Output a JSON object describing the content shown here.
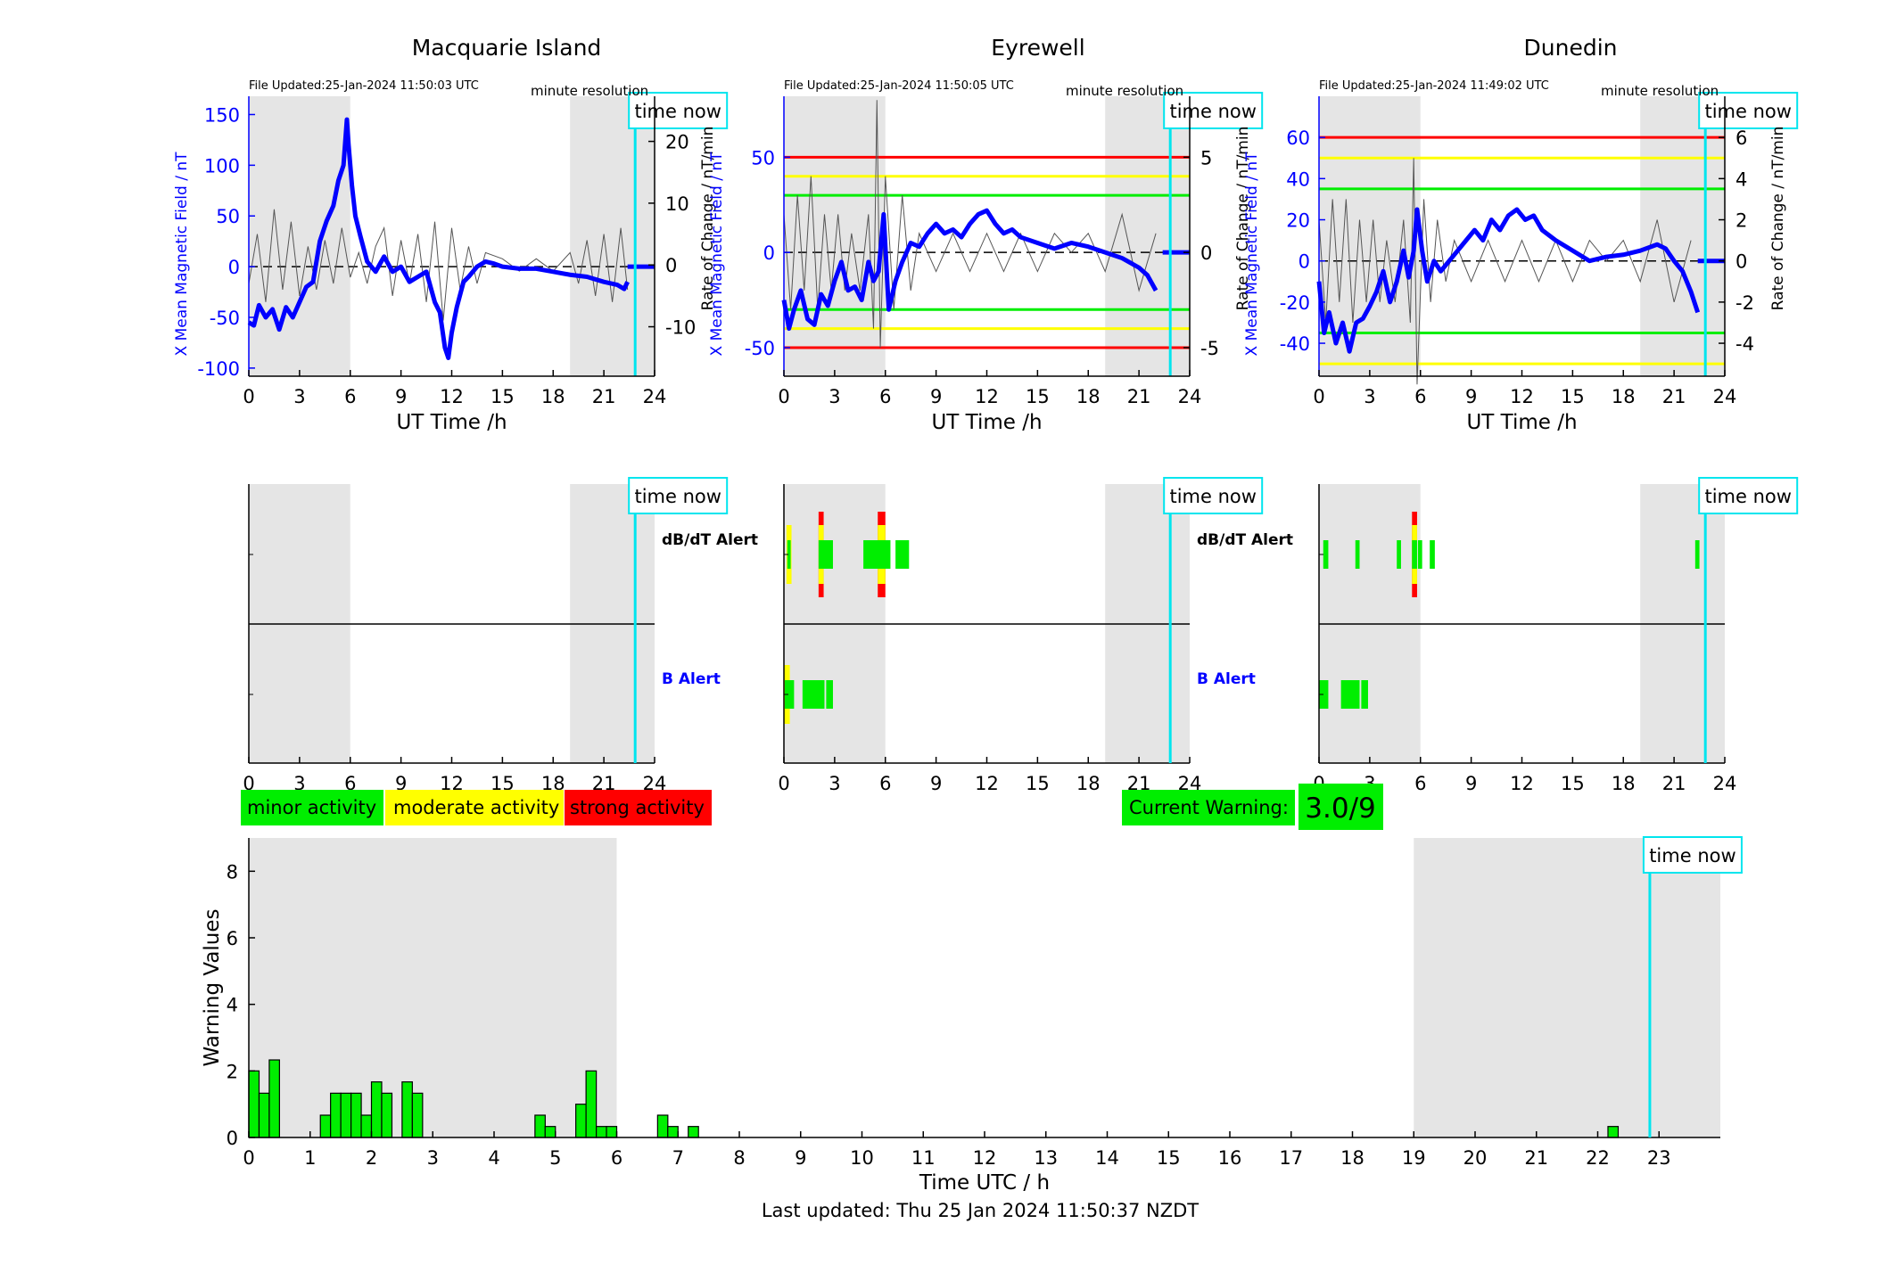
{
  "page": {
    "footer": "Last updated: Thu 25 Jan 2024 11:50:37 NZDT"
  },
  "colors": {
    "field": "#0000ff",
    "rate": "#555555",
    "night": "#e5e5e5",
    "now": "#00e5ee",
    "minor": "#00ee00",
    "moderate": "#ffff00",
    "strong": "#ff0000"
  },
  "common": {
    "x_label": "UT Time /h",
    "resolution": "minute resolution",
    "time_now": "time now",
    "x_ticks": [
      0,
      3,
      6,
      9,
      12,
      15,
      18,
      21,
      24
    ],
    "night_shading": [
      [
        0,
        6
      ],
      [
        19,
        24
      ]
    ],
    "now_hour": 22.85,
    "y_label": "X Mean Magnetic Field / nT",
    "y2_label": "Rate of Change / nT/min",
    "dbdt_label": "dB/dT Alert",
    "b_label": "B Alert"
  },
  "chart_data": [
    {
      "type": "line",
      "title": "Macquarie Island",
      "updated": "File Updated:25-Jan-2024 11:50:03 UTC",
      "ylim": [
        -108,
        168
      ],
      "y_ticks": [
        -100,
        -50,
        0,
        50,
        100,
        150
      ],
      "y2lim": [
        -18,
        27.3
      ],
      "y2_ticks": [
        -10,
        0,
        10,
        20
      ],
      "thresholds": [],
      "field_series": {
        "name": "X Mean Magnetic Field / nT",
        "x": [
          0,
          0.3,
          0.6,
          1,
          1.4,
          1.8,
          2.2,
          2.6,
          3,
          3.4,
          3.8,
          4.2,
          4.6,
          5,
          5.3,
          5.6,
          5.8,
          5.9,
          6.1,
          6.3,
          6.6,
          7,
          7.5,
          8,
          8.5,
          9,
          9.5,
          10,
          10.5,
          11,
          11.3,
          11.6,
          11.8,
          12,
          12.3,
          12.7,
          13,
          13.5,
          14,
          14.5,
          15,
          16,
          17,
          18,
          19,
          20,
          21,
          21.8,
          22.2,
          22.4
        ],
        "y": [
          -55,
          -58,
          -38,
          -50,
          -42,
          -62,
          -40,
          -50,
          -35,
          -20,
          -15,
          25,
          45,
          60,
          85,
          100,
          145,
          120,
          80,
          50,
          30,
          5,
          -5,
          10,
          -5,
          0,
          -15,
          -10,
          -5,
          -35,
          -45,
          -80,
          -90,
          -65,
          -40,
          -15,
          -10,
          0,
          5,
          3,
          0,
          -2,
          -2,
          -5,
          -8,
          -10,
          -15,
          -18,
          -22,
          -15
        ]
      },
      "rate_series": {
        "name": "Rate of Change / nT/min",
        "x": [
          0,
          0.5,
          1,
          1.5,
          2,
          2.5,
          3,
          3.5,
          4,
          4.5,
          5,
          5.5,
          6,
          6.5,
          7,
          7.5,
          8,
          8.5,
          9,
          9.5,
          10,
          10.5,
          11,
          11.5,
          12,
          12.5,
          13,
          13.5,
          14,
          15,
          16,
          17,
          18,
          19,
          19.5,
          20,
          20.5,
          21,
          21.5,
          22,
          22.4
        ],
        "y": [
          -3,
          5,
          -6,
          9,
          -4,
          7,
          -5,
          3,
          -4,
          4,
          -3,
          6,
          -2,
          2,
          -3,
          3,
          6,
          -5,
          4,
          -3,
          5,
          -6,
          7,
          -9,
          6,
          -4,
          3,
          -3,
          2,
          1,
          -1,
          1,
          -1,
          2,
          -3,
          4,
          -5,
          5,
          -6,
          6,
          -4
        ]
      },
      "dbdt_alerts": [],
      "b_alerts": []
    },
    {
      "type": "line",
      "title": "Eyrewell",
      "updated": "File Updated:25-Jan-2024 11:50:05 UTC",
      "ylim": [
        -65,
        82
      ],
      "y_ticks": [
        -50,
        0,
        50
      ],
      "y2lim": [
        -6.5,
        8.2
      ],
      "y2_ticks": [
        -5,
        0,
        5
      ],
      "thresholds": [
        {
          "value": 50,
          "level": "strong"
        },
        {
          "value": 40,
          "level": "moderate"
        },
        {
          "value": 30,
          "level": "minor"
        },
        {
          "value": -30,
          "level": "minor"
        },
        {
          "value": -40,
          "level": "moderate"
        },
        {
          "value": -50,
          "level": "strong"
        }
      ],
      "field_series": {
        "name": "X Mean Magnetic Field / nT",
        "x": [
          0,
          0.3,
          0.6,
          1,
          1.4,
          1.8,
          2.2,
          2.6,
          3,
          3.4,
          3.8,
          4.2,
          4.6,
          5,
          5.3,
          5.6,
          5.9,
          6.2,
          6.6,
          7,
          7.5,
          8,
          8.5,
          9,
          9.5,
          10,
          10.5,
          11,
          11.5,
          12,
          12.5,
          13,
          13.5,
          14,
          15,
          16,
          17,
          18,
          19,
          20,
          21,
          21.5,
          22
        ],
        "y": [
          -25,
          -40,
          -30,
          -20,
          -35,
          -38,
          -22,
          -28,
          -15,
          -5,
          -20,
          -18,
          -25,
          -5,
          -15,
          -10,
          20,
          -30,
          -15,
          -5,
          5,
          3,
          10,
          15,
          10,
          12,
          8,
          15,
          20,
          22,
          15,
          10,
          12,
          8,
          5,
          2,
          5,
          3,
          0,
          -3,
          -8,
          -12,
          -20
        ]
      },
      "rate_series": {
        "name": "Rate of Change / nT/min",
        "x": [
          0,
          0.4,
          0.8,
          1.2,
          1.6,
          2,
          2.4,
          2.8,
          3.2,
          3.6,
          4,
          4.5,
          5,
          5.3,
          5.5,
          5.7,
          6,
          6.5,
          7,
          7.5,
          8,
          9,
          10,
          11,
          12,
          13,
          14,
          15,
          16,
          17,
          18,
          19,
          20,
          21,
          22
        ],
        "y": [
          2,
          -3,
          3,
          -2,
          4,
          -3,
          2,
          -2,
          2,
          -2,
          1,
          -2,
          2,
          -4,
          8,
          -5,
          4,
          -3,
          3,
          -2,
          1,
          -1,
          1,
          -1,
          1,
          -1,
          1,
          -1,
          1,
          0,
          1,
          -1,
          2,
          -2,
          1
        ]
      },
      "dbdt_alerts": [
        {
          "start": 0.15,
          "end": 0.45,
          "level": "moderate"
        },
        {
          "start": 0.2,
          "end": 0.4,
          "level": "minor"
        },
        {
          "start": 2.05,
          "end": 2.35,
          "level": "strong"
        },
        {
          "start": 2.05,
          "end": 2.35,
          "level": "moderate"
        },
        {
          "start": 2.05,
          "end": 2.9,
          "level": "minor"
        },
        {
          "start": 5.55,
          "end": 6.0,
          "level": "strong"
        },
        {
          "start": 5.55,
          "end": 6.0,
          "level": "moderate"
        },
        {
          "start": 4.7,
          "end": 6.3,
          "level": "minor"
        },
        {
          "start": 6.6,
          "end": 7.4,
          "level": "minor"
        }
      ],
      "b_alerts": [
        {
          "start": 0.0,
          "end": 0.35,
          "level": "moderate"
        },
        {
          "start": 0.05,
          "end": 0.6,
          "level": "minor"
        },
        {
          "start": 1.1,
          "end": 2.4,
          "level": "minor"
        },
        {
          "start": 2.5,
          "end": 2.9,
          "level": "minor"
        }
      ]
    },
    {
      "type": "line",
      "title": "Dunedin",
      "updated": "File Updated:25-Jan-2024 11:49:02 UTC",
      "ylim": [
        -56,
        80
      ],
      "y_ticks": [
        -40,
        -20,
        0,
        20,
        40,
        60
      ],
      "y2lim": [
        -5.6,
        8.0
      ],
      "y2_ticks": [
        -4,
        -2,
        0,
        2,
        4,
        6
      ],
      "thresholds": [
        {
          "value": 60,
          "level": "strong"
        },
        {
          "value": 50,
          "level": "moderate"
        },
        {
          "value": 35,
          "level": "minor"
        },
        {
          "value": -35,
          "level": "minor"
        },
        {
          "value": -50,
          "level": "moderate"
        }
      ],
      "field_series": {
        "name": "X Mean Magnetic Field / nT",
        "x": [
          0,
          0.3,
          0.6,
          1,
          1.4,
          1.8,
          2.2,
          2.6,
          3,
          3.4,
          3.8,
          4.2,
          4.6,
          5,
          5.3,
          5.6,
          5.8,
          6.1,
          6.4,
          6.8,
          7.2,
          7.7,
          8.2,
          8.7,
          9.2,
          9.7,
          10.2,
          10.7,
          11.2,
          11.7,
          12.2,
          12.7,
          13.2,
          14,
          15,
          16,
          17,
          18,
          19,
          20,
          20.5,
          21,
          21.5,
          22,
          22.4
        ],
        "y": [
          -10,
          -35,
          -25,
          -40,
          -30,
          -44,
          -30,
          -28,
          -22,
          -15,
          -5,
          -20,
          -10,
          5,
          -8,
          5,
          25,
          5,
          -10,
          0,
          -5,
          0,
          5,
          10,
          15,
          10,
          20,
          15,
          22,
          25,
          20,
          22,
          15,
          10,
          5,
          0,
          2,
          3,
          5,
          8,
          6,
          0,
          -5,
          -15,
          -25
        ]
      },
      "rate_series": {
        "name": "Rate of Change / nT/min",
        "x": [
          0,
          0.4,
          0.8,
          1.2,
          1.6,
          2,
          2.4,
          2.8,
          3.2,
          3.6,
          4,
          4.5,
          5,
          5.4,
          5.6,
          5.8,
          6.2,
          6.6,
          7,
          7.5,
          8,
          9,
          10,
          11,
          12,
          13,
          14,
          15,
          16,
          17,
          18,
          19,
          20,
          21,
          22
        ],
        "y": [
          2,
          -3,
          3,
          -2,
          3,
          -3,
          2,
          -2,
          2,
          -2,
          1,
          -2,
          2,
          -3,
          5,
          -6,
          3,
          -2,
          2,
          -1,
          1,
          -1,
          1,
          -1,
          1,
          -1,
          1,
          -1,
          1,
          0,
          1,
          -1,
          2,
          -2,
          1
        ]
      },
      "dbdt_alerts": [
        {
          "start": 0.25,
          "end": 0.55,
          "level": "minor"
        },
        {
          "start": 2.15,
          "end": 2.4,
          "level": "minor"
        },
        {
          "start": 4.6,
          "end": 4.85,
          "level": "minor"
        },
        {
          "start": 5.5,
          "end": 5.8,
          "level": "strong"
        },
        {
          "start": 5.5,
          "end": 5.8,
          "level": "moderate"
        },
        {
          "start": 5.5,
          "end": 5.8,
          "level": "minor"
        },
        {
          "start": 5.85,
          "end": 6.1,
          "level": "minor"
        },
        {
          "start": 6.55,
          "end": 6.85,
          "level": "minor"
        },
        {
          "start": 22.25,
          "end": 22.5,
          "level": "minor"
        }
      ],
      "b_alerts": [
        {
          "start": 0.0,
          "end": 0.55,
          "level": "minor"
        },
        {
          "start": 1.3,
          "end": 2.4,
          "level": "minor"
        },
        {
          "start": 2.5,
          "end": 2.9,
          "level": "minor"
        }
      ]
    },
    {
      "type": "bar",
      "xlabel": "Time UTC / h",
      "ylabel": "Warning Values",
      "x_ticks": [
        0,
        1,
        2,
        3,
        4,
        5,
        6,
        7,
        8,
        9,
        10,
        11,
        12,
        13,
        14,
        15,
        16,
        17,
        18,
        19,
        20,
        21,
        22,
        23
      ],
      "y_ticks": [
        0,
        2,
        4,
        6,
        8
      ],
      "ylim": [
        0,
        9
      ],
      "xlim": [
        0,
        24
      ],
      "bar_width_hours": 0.167,
      "bars_start_hour": [
        0.0,
        0.167,
        0.333,
        1.167,
        1.333,
        1.5,
        1.667,
        1.833,
        2.0,
        2.167,
        2.5,
        2.667,
        4.667,
        4.833,
        5.333,
        5.5,
        5.667,
        5.833,
        6.667,
        6.833,
        7.167,
        22.167
      ],
      "values": [
        2.0,
        1.33,
        2.33,
        0.67,
        1.33,
        1.33,
        1.33,
        0.67,
        1.67,
        1.33,
        1.67,
        1.33,
        0.67,
        0.33,
        1.0,
        2.0,
        0.33,
        0.33,
        0.67,
        0.33,
        0.33,
        0.33
      ]
    }
  ],
  "legend": {
    "minor": "minor activity",
    "moderate": "moderate activity",
    "strong": "strong activity"
  },
  "warning": {
    "label": "Current Warning:",
    "value": "3.0/9"
  }
}
